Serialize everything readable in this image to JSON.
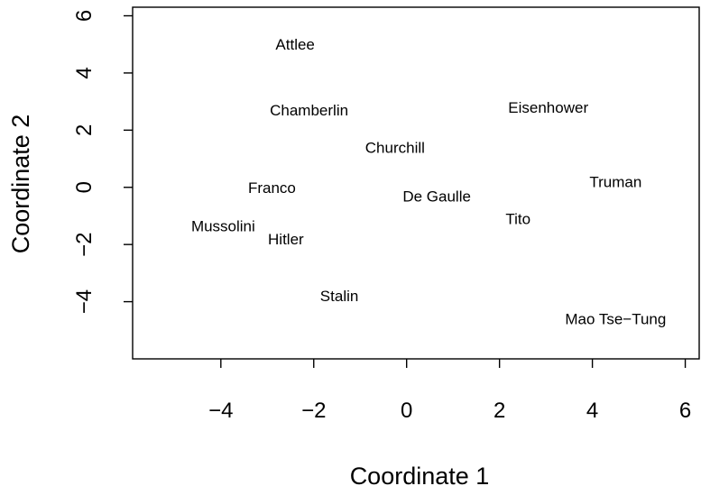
{
  "chart_data": {
    "type": "scatter",
    "title": "",
    "xlabel": "Coordinate 1",
    "ylabel": "Coordinate 2",
    "xlim": [
      -5.9,
      6.3
    ],
    "ylim": [
      -6.0,
      6.3
    ],
    "x_ticks": [
      -4,
      -2,
      0,
      2,
      4,
      6
    ],
    "x_tick_labels": [
      "−4",
      "−2",
      "0",
      "2",
      "4",
      "6"
    ],
    "y_ticks": [
      -4,
      -2,
      0,
      2,
      4,
      6
    ],
    "y_tick_labels": [
      "−4",
      "−2",
      "0",
      "2",
      "4",
      "6"
    ],
    "grid": false,
    "points": [
      {
        "label": "Attlee",
        "x": -2.4,
        "y": 5.0
      },
      {
        "label": "Chamberlin",
        "x": -2.1,
        "y": 2.7
      },
      {
        "label": "Churchill",
        "x": -0.25,
        "y": 1.4
      },
      {
        "label": "Eisenhower",
        "x": 3.05,
        "y": 2.8
      },
      {
        "label": "Franco",
        "x": -2.9,
        "y": 0.0
      },
      {
        "label": "De Gaulle",
        "x": 0.65,
        "y": -0.3
      },
      {
        "label": "Truman",
        "x": 4.5,
        "y": 0.2
      },
      {
        "label": "Tito",
        "x": 2.4,
        "y": -1.1
      },
      {
        "label": "Mussolini",
        "x": -3.95,
        "y": -1.35
      },
      {
        "label": "Hitler",
        "x": -2.6,
        "y": -1.8
      },
      {
        "label": "Stalin",
        "x": -1.45,
        "y": -3.8
      },
      {
        "label": "Mao Tse−Tung",
        "x": 4.5,
        "y": -4.6
      }
    ]
  }
}
